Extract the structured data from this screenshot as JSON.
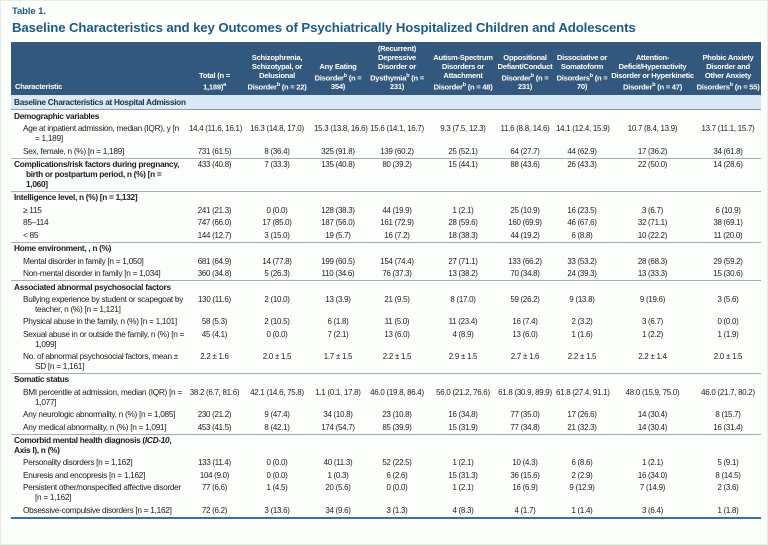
{
  "page": {
    "table_label": "Table 1.",
    "title": "Baseline Characteristics and key Outcomes of Psychiatrically Hospitalized Children and Adolescents"
  },
  "colors": {
    "accent": "#1c5a87",
    "header_bg": "#33587d",
    "band_bg": "#dbe9f6",
    "bottom_border": "#3f6fa0"
  },
  "table": {
    "char_header": "Characteristic",
    "columns": [
      {
        "name": "Total",
        "n": "(n = 1,189)",
        "n_sup": "a"
      },
      {
        "name": "Schizophrenia, Schizotypal, or Delusional Disorder",
        "sup": "b",
        "n": "(n = 22)"
      },
      {
        "name": "Any Eating Disorder",
        "sup": "b",
        "n": "(n = 354)"
      },
      {
        "name": "(Recurrent) Depressive Disorder or Dysthymia",
        "sup": "b",
        "n": "(n = 231)"
      },
      {
        "name": "Autism-Spectrum Disorders or Attachment Disorder",
        "sup": "b",
        "n": "(n = 48)"
      },
      {
        "name": "Oppositional Defiant/Conduct Disorder",
        "sup": "b",
        "n": "(n = 231)"
      },
      {
        "name": "Dissociative or Somatoform Disorders",
        "sup": "b",
        "n": "(n = 70)"
      },
      {
        "name": "Attention-Deficit/Hyperactivity Disorder or Hyperkinetic Disorder",
        "sup": "b",
        "n": "(n = 47)"
      },
      {
        "name": "Phobic Anxiety Disorder and Other Anxiety Disorders",
        "sup": "b",
        "n": "(n = 55)"
      }
    ],
    "rows": [
      {
        "type": "band",
        "label": "Baseline Characteristics at Hospital Admission"
      },
      {
        "type": "group",
        "label": "Demographic variables"
      },
      {
        "type": "data",
        "label": "Age at inpatient admission, median (IQR), y [n = 1,189]",
        "values": [
          "14.4 (11.6, 16.1)",
          "16.3 (14.8, 17.0)",
          "15.3 (13.8, 16.6)",
          "15.6 (14.1, 16.7)",
          "9.3 (7.5, 12.3)",
          "11.6 (8.8, 14.6)",
          "14.1 (12.4, 15.9)",
          "10.7 (8.4, 13.9)",
          "13.7 (11.1, 15.7)"
        ]
      },
      {
        "type": "data",
        "label": "Sex, female, n (%) [n = 1,189]",
        "values": [
          "731 (61.5)",
          "8 (36.4)",
          "325 (91.8)",
          "139 (60.2)",
          "25 (52.1)",
          "64 (27.7)",
          "44 (62.9)",
          "17 (36.2)",
          "34 (61.8)"
        ]
      },
      {
        "type": "groupdata",
        "rule": true,
        "label": "Complications/risk factors during pregnancy, birth or postpartum period, n (%) [n = 1,060]",
        "values": [
          "433 (40.8)",
          "7 (33.3)",
          "135 (40.8)",
          "80 (39.2)",
          "15 (44.1)",
          "88 (43.6)",
          "26 (43.3)",
          "22 (50.0)",
          "14 (28.6)"
        ]
      },
      {
        "type": "group",
        "rule": true,
        "label": "Intelligence level, n (%) [n = 1,132]"
      },
      {
        "type": "data",
        "label": "≥ 115",
        "values": [
          "241 (21.3)",
          "0 (0.0)",
          "128 (38.3)",
          "44 (19.9)",
          "1 (2.1)",
          "25 (10.9)",
          "16 (23.5)",
          "3 (6.7)",
          "6 (10.9)"
        ]
      },
      {
        "type": "data",
        "label": "85–114",
        "values": [
          "747 (66.0)",
          "17 (85.0)",
          "187 (56.0)",
          "161 (72.9)",
          "28 (59.6)",
          "160 (69.9)",
          "46 (67.6)",
          "32 (71.1)",
          "38 (69.1)"
        ]
      },
      {
        "type": "data",
        "label": "< 85",
        "values": [
          "144 (12.7)",
          "3 (15.0)",
          "19 (5.7)",
          "16 (7.2)",
          "18 (38.3)",
          "44 (19.2)",
          "6 (8.8)",
          "10 (22.2)",
          "11 (20.0)"
        ]
      },
      {
        "type": "group",
        "rule": true,
        "label": "Home environment, , n (%)"
      },
      {
        "type": "data",
        "label": "Mental disorder in family [n = 1,050]",
        "values": [
          "681 (64.9)",
          "14 (77.8)",
          "199 (60.5)",
          "154 (74.4)",
          "27 (71.1)",
          "133 (66.2)",
          "33 (53.2)",
          "28 (68.3)",
          "29 (59.2)"
        ]
      },
      {
        "type": "data",
        "label": "Non-mental disorder in family [n = 1,034]",
        "values": [
          "360 (34.8)",
          "5 (26.3)",
          "110 (34.6)",
          "76 (37.3)",
          "13 (38.2)",
          "70 (34.8)",
          "24 (39.3)",
          "13 (33.3)",
          "15 (30.6)"
        ]
      },
      {
        "type": "group",
        "rule": true,
        "label": "Associated abnormal psychosocial factors"
      },
      {
        "type": "data",
        "label": "Bullying experience by student or scapegoat by teacher, n (%) [n = 1,121]",
        "values": [
          "130 (11.6)",
          "2 (10.0)",
          "13 (3.9)",
          "21 (9.5)",
          "8 (17.0)",
          "59 (26.2)",
          "9 (13.8)",
          "9 (19.6)",
          "3 (5.6)"
        ]
      },
      {
        "type": "data",
        "label": "Physical abuse in the family, n (%) [n = 1,101]",
        "values": [
          "58 (5.3)",
          "2 (10.5)",
          "6 (1.8)",
          "11 (5.0)",
          "11 (23.4)",
          "16 (7.4)",
          "2 (3.2)",
          "3 (6.7)",
          "0 (0.0)"
        ]
      },
      {
        "type": "data",
        "label": "Sexual abuse in or outside the family, n (%) [n = 1,099]",
        "values": [
          "45 (4.1)",
          "0 (0.0)",
          "7 (2.1)",
          "13 (6.0)",
          "4 (8.9)",
          "13 (6.0)",
          "1 (1.6)",
          "1 (2.2)",
          "1 (1.9)"
        ]
      },
      {
        "type": "data",
        "label": "No. of abnormal psychosocial factors, mean ± SD [n = 1,161]",
        "values": [
          "2.2 ± 1.6",
          "2.0 ± 1.5",
          "1.7 ± 1.5",
          "2.2 ± 1.5",
          "2.9 ± 1.5",
          "2.7 ± 1.6",
          "2.2 ± 1.5",
          "2.2 ± 1.4",
          "2.0 ± 1.5"
        ]
      },
      {
        "type": "group",
        "rule": true,
        "label": "Somatic status"
      },
      {
        "type": "data",
        "label": "BMI percentile at admission, median (IQR) [n = 1,077]",
        "values": [
          "38.2 (6.7, 81.6)",
          "42.1 (14.6, 75.8)",
          "1.1 (0.1, 17.8)",
          "46.0 (19.8, 86.4)",
          "56.0 (21.2, 76.6)",
          "61.8 (30.9, 89.9)",
          "61.8 (27.4, 91.1)",
          "48.0 (15.9, 75.0)",
          "46.0 (21.7, 80.2)"
        ]
      },
      {
        "type": "data",
        "label": "Any neurologic abnormality, n (%) [n = 1,085]",
        "values": [
          "230 (21.2)",
          "9 (47.4)",
          "34 (10.8)",
          "23 (10.8)",
          "16 (34.8)",
          "77 (35.0)",
          "17 (26.6)",
          "14 (30.4)",
          "8 (15.7)"
        ]
      },
      {
        "type": "data",
        "label": "Any medical abnormality, n (%) [n = 1,091]",
        "values": [
          "453 (41.5)",
          "8 (42.1)",
          "174 (54.7)",
          "85 (39.9)",
          "15 (31.9)",
          "77 (34.8)",
          "21 (32.3)",
          "14 (30.4)",
          "16 (31.4)"
        ]
      },
      {
        "type": "group",
        "rule": true,
        "label": "Comorbid mental health diagnosis (ICD-10, Axis I), n (%)",
        "italic": "ICD-10"
      },
      {
        "type": "data",
        "label": "Personality disorders [n = 1,162]",
        "values": [
          "133 (11.4)",
          "0 (0.0)",
          "40 (11.3)",
          "52 (22.5)",
          "1 (2.1)",
          "10 (4.3)",
          "6 (8.6)",
          "1 (2.1)",
          "5 (9.1)"
        ]
      },
      {
        "type": "data",
        "label": "Enuresis and encopresis [n = 1,162]",
        "values": [
          "104 (9.0)",
          "0 (0.0)",
          "1 (0.3)",
          "6 (2.6)",
          "15 (31.3)",
          "36 (15.6)",
          "2 (2.9)",
          "16 (34.0)",
          "8 (14.5)"
        ]
      },
      {
        "type": "data",
        "label": "Persistent other/nonspecified affective disorder [n = 1,162]",
        "values": [
          "77 (6.6)",
          "1 (4.5)",
          "20 (5.6)",
          "0 (0.0)",
          "1 (2.1)",
          "16 (6.9)",
          "9 (12.9)",
          "7 (14.9)",
          "2 (3.6)"
        ]
      },
      {
        "type": "data",
        "label": "Obsessive-compulsive disorders [n = 1,162]",
        "values": [
          "72 (6.2)",
          "3 (13.6)",
          "34 (9.6)",
          "3 (1.3)",
          "4 (8.3)",
          "4 (1.7)",
          "1 (1.4)",
          "3 (6.4)",
          "1 (1.8)"
        ]
      }
    ]
  }
}
